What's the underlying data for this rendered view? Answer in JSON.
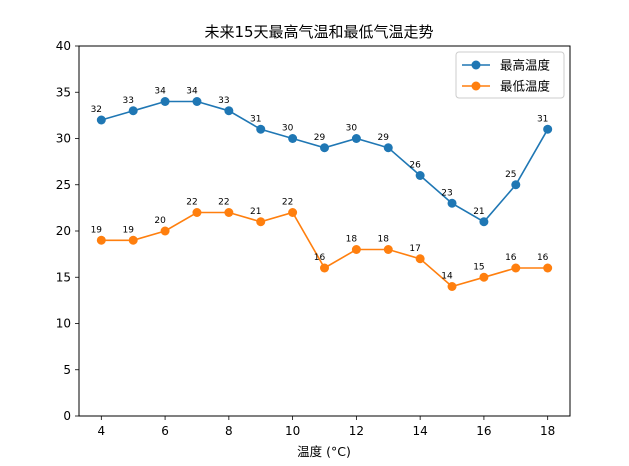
{
  "chart_data": {
    "type": "line",
    "title": "未来15天最高气温和最低气温走势",
    "xlabel": "温度 (°C)",
    "ylabel": "",
    "x": [
      4,
      5,
      6,
      7,
      8,
      9,
      10,
      11,
      12,
      13,
      14,
      15,
      16,
      17,
      18
    ],
    "xlim": [
      3.3,
      18.7
    ],
    "ylim": [
      0,
      40
    ],
    "xticks": [
      4,
      6,
      8,
      10,
      12,
      14,
      16,
      18
    ],
    "yticks": [
      0,
      5,
      10,
      15,
      20,
      25,
      30,
      35,
      40
    ],
    "grid": false,
    "legend_position": "top-right",
    "series": [
      {
        "name": "最高温度",
        "color": "#1f77b4",
        "values": [
          32,
          33,
          34,
          34,
          33,
          31,
          30,
          29,
          30,
          29,
          26,
          23,
          21,
          25,
          31
        ]
      },
      {
        "name": "最低温度",
        "color": "#ff7f0e",
        "values": [
          19,
          19,
          20,
          22,
          22,
          21,
          22,
          16,
          18,
          18,
          17,
          14,
          15,
          16,
          16
        ]
      }
    ]
  }
}
